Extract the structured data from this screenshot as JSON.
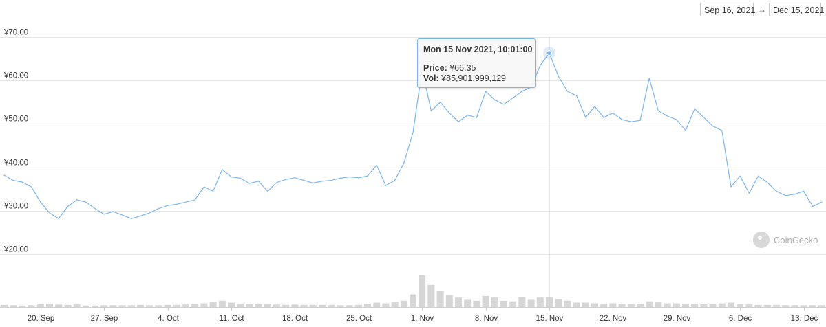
{
  "range": {
    "from": "Sep 16, 2021",
    "arrow": "→",
    "to": "Dec 15, 2021"
  },
  "tooltip": {
    "header": "Mon 15 Nov 2021, 10:01:00",
    "price_label": "Price:",
    "price_value": "¥66.35",
    "vol_label": "Vol:",
    "vol_value": "¥85,901,999,129"
  },
  "watermark": {
    "text": "CoinGecko",
    "icon": "coingecko-gecko-logo"
  },
  "colors": {
    "line": "#7cb5ec",
    "volume": "#c8c8c8",
    "grid": "#e6e6e6",
    "crosshair": "#cccccc",
    "tooltip_border": "#7cb5ec"
  },
  "chart_data": {
    "type": "line",
    "title": "",
    "xlabel": "",
    "ylabel": "",
    "x_range": [
      "2021-09-16",
      "2021-12-15"
    ],
    "ylim": [
      20,
      70
    ],
    "y_ticks": [
      20,
      30,
      40,
      50,
      60,
      70
    ],
    "y_tick_labels": [
      "¥20.00",
      "¥30.00",
      "¥40.00",
      "¥50.00",
      "¥60.00",
      "¥70.00"
    ],
    "x_ticks": [
      {
        "date": "2021-09-20",
        "label": "20. Sep"
      },
      {
        "date": "2021-09-27",
        "label": "27. Sep"
      },
      {
        "date": "2021-10-04",
        "label": "4. Oct"
      },
      {
        "date": "2021-10-11",
        "label": "11. Oct"
      },
      {
        "date": "2021-10-18",
        "label": "18. Oct"
      },
      {
        "date": "2021-10-25",
        "label": "25. Oct"
      },
      {
        "date": "2021-11-01",
        "label": "1. Nov"
      },
      {
        "date": "2021-11-08",
        "label": "8. Nov"
      },
      {
        "date": "2021-11-15",
        "label": "15. Nov"
      },
      {
        "date": "2021-11-22",
        "label": "22. Nov"
      },
      {
        "date": "2021-11-29",
        "label": "29. Nov"
      },
      {
        "date": "2021-12-06",
        "label": "6. Dec"
      },
      {
        "date": "2021-12-13",
        "label": "13. Dec"
      }
    ],
    "grid": true,
    "legend": "none",
    "highlight": {
      "date": "2021-11-15",
      "value": 66.35
    },
    "series": [
      {
        "values": [
          [
            "2021-09-16",
            38.2
          ],
          [
            "2021-09-17",
            37.0
          ],
          [
            "2021-09-18",
            36.6
          ],
          [
            "2021-09-19",
            35.5
          ],
          [
            "2021-09-20",
            32.0
          ],
          [
            "2021-09-21",
            29.5
          ],
          [
            "2021-09-22",
            28.2
          ],
          [
            "2021-09-23",
            31.0
          ],
          [
            "2021-09-24",
            32.5
          ],
          [
            "2021-09-25",
            32.0
          ],
          [
            "2021-09-26",
            30.5
          ],
          [
            "2021-09-27",
            29.2
          ],
          [
            "2021-09-28",
            29.8
          ],
          [
            "2021-09-29",
            29.0
          ],
          [
            "2021-09-30",
            28.2
          ],
          [
            "2021-10-01",
            28.8
          ],
          [
            "2021-10-02",
            29.5
          ],
          [
            "2021-10-03",
            30.5
          ],
          [
            "2021-10-04",
            31.2
          ],
          [
            "2021-10-05",
            31.5
          ],
          [
            "2021-10-06",
            32.0
          ],
          [
            "2021-10-07",
            32.5
          ],
          [
            "2021-10-08",
            35.5
          ],
          [
            "2021-10-09",
            34.5
          ],
          [
            "2021-10-10",
            39.5
          ],
          [
            "2021-10-11",
            37.8
          ],
          [
            "2021-10-12",
            37.5
          ],
          [
            "2021-10-13",
            36.3
          ],
          [
            "2021-10-14",
            36.8
          ],
          [
            "2021-10-15",
            34.5
          ],
          [
            "2021-10-16",
            36.5
          ],
          [
            "2021-10-17",
            37.2
          ],
          [
            "2021-10-18",
            37.6
          ],
          [
            "2021-10-19",
            37.0
          ],
          [
            "2021-10-20",
            36.4
          ],
          [
            "2021-10-21",
            36.8
          ],
          [
            "2021-10-22",
            37.0
          ],
          [
            "2021-10-23",
            37.5
          ],
          [
            "2021-10-24",
            37.8
          ],
          [
            "2021-10-25",
            37.6
          ],
          [
            "2021-10-26",
            38.0
          ],
          [
            "2021-10-27",
            40.5
          ],
          [
            "2021-10-28",
            35.8
          ],
          [
            "2021-10-29",
            37.0
          ],
          [
            "2021-10-30",
            41.0
          ],
          [
            "2021-10-31",
            48.0
          ],
          [
            "2021-11-01",
            62.5
          ],
          [
            "2021-11-02",
            53.0
          ],
          [
            "2021-11-03",
            55.0
          ],
          [
            "2021-11-04",
            52.5
          ],
          [
            "2021-11-05",
            50.5
          ],
          [
            "2021-11-06",
            52.0
          ],
          [
            "2021-11-07",
            51.5
          ],
          [
            "2021-11-08",
            57.5
          ],
          [
            "2021-11-09",
            55.5
          ],
          [
            "2021-11-10",
            54.5
          ],
          [
            "2021-11-11",
            56.0
          ],
          [
            "2021-11-12",
            57.5
          ],
          [
            "2021-11-13",
            58.5
          ],
          [
            "2021-11-14",
            63.5
          ],
          [
            "2021-11-15",
            66.35
          ],
          [
            "2021-11-16",
            61.0
          ],
          [
            "2021-11-17",
            57.5
          ],
          [
            "2021-11-18",
            56.5
          ],
          [
            "2021-11-19",
            51.5
          ],
          [
            "2021-11-20",
            54.0
          ],
          [
            "2021-11-21",
            51.5
          ],
          [
            "2021-11-22",
            52.5
          ],
          [
            "2021-11-23",
            51.0
          ],
          [
            "2021-11-24",
            50.5
          ],
          [
            "2021-11-25",
            50.8
          ],
          [
            "2021-11-26",
            60.5
          ],
          [
            "2021-11-27",
            53.0
          ],
          [
            "2021-11-28",
            51.8
          ],
          [
            "2021-11-29",
            51.0
          ],
          [
            "2021-11-30",
            48.5
          ],
          [
            "2021-12-01",
            53.5
          ],
          [
            "2021-12-02",
            51.5
          ],
          [
            "2021-12-03",
            49.5
          ],
          [
            "2021-12-04",
            48.5
          ],
          [
            "2021-12-05",
            35.5
          ],
          [
            "2021-12-06",
            38.0
          ],
          [
            "2021-12-07",
            34.0
          ],
          [
            "2021-12-08",
            38.0
          ],
          [
            "2021-12-09",
            36.5
          ],
          [
            "2021-12-10",
            34.5
          ],
          [
            "2021-12-11",
            33.5
          ],
          [
            "2021-12-12",
            33.8
          ],
          [
            "2021-12-13",
            34.5
          ],
          [
            "2021-12-14",
            31.0
          ],
          [
            "2021-12-15",
            32.0
          ]
        ]
      }
    ],
    "volume": [
      [
        "2021-09-16",
        0.07
      ],
      [
        "2021-09-17",
        0.06
      ],
      [
        "2021-09-18",
        0.05
      ],
      [
        "2021-09-19",
        0.06
      ],
      [
        "2021-09-20",
        0.09
      ],
      [
        "2021-09-21",
        0.1
      ],
      [
        "2021-09-22",
        0.08
      ],
      [
        "2021-09-23",
        0.07
      ],
      [
        "2021-09-24",
        0.08
      ],
      [
        "2021-09-25",
        0.05
      ],
      [
        "2021-09-26",
        0.05
      ],
      [
        "2021-09-27",
        0.06
      ],
      [
        "2021-09-28",
        0.06
      ],
      [
        "2021-09-29",
        0.06
      ],
      [
        "2021-09-30",
        0.06
      ],
      [
        "2021-10-01",
        0.07
      ],
      [
        "2021-10-02",
        0.06
      ],
      [
        "2021-10-03",
        0.06
      ],
      [
        "2021-10-04",
        0.07
      ],
      [
        "2021-10-05",
        0.07
      ],
      [
        "2021-10-06",
        0.08
      ],
      [
        "2021-10-07",
        0.09
      ],
      [
        "2021-10-08",
        0.12
      ],
      [
        "2021-10-09",
        0.15
      ],
      [
        "2021-10-10",
        0.2
      ],
      [
        "2021-10-11",
        0.14
      ],
      [
        "2021-10-12",
        0.11
      ],
      [
        "2021-10-13",
        0.1
      ],
      [
        "2021-10-14",
        0.09
      ],
      [
        "2021-10-15",
        0.11
      ],
      [
        "2021-10-16",
        0.08
      ],
      [
        "2021-10-17",
        0.07
      ],
      [
        "2021-10-18",
        0.08
      ],
      [
        "2021-10-19",
        0.07
      ],
      [
        "2021-10-20",
        0.07
      ],
      [
        "2021-10-21",
        0.07
      ],
      [
        "2021-10-22",
        0.07
      ],
      [
        "2021-10-23",
        0.06
      ],
      [
        "2021-10-24",
        0.06
      ],
      [
        "2021-10-25",
        0.07
      ],
      [
        "2021-10-26",
        0.1
      ],
      [
        "2021-10-27",
        0.14
      ],
      [
        "2021-10-28",
        0.12
      ],
      [
        "2021-10-29",
        0.15
      ],
      [
        "2021-10-30",
        0.2
      ],
      [
        "2021-10-31",
        0.4
      ],
      [
        "2021-11-01",
        1.0
      ],
      [
        "2021-11-02",
        0.7
      ],
      [
        "2021-11-03",
        0.5
      ],
      [
        "2021-11-04",
        0.38
      ],
      [
        "2021-11-05",
        0.3
      ],
      [
        "2021-11-06",
        0.25
      ],
      [
        "2021-11-07",
        0.2
      ],
      [
        "2021-11-08",
        0.35
      ],
      [
        "2021-11-09",
        0.3
      ],
      [
        "2021-11-10",
        0.2
      ],
      [
        "2021-11-11",
        0.18
      ],
      [
        "2021-11-12",
        0.32
      ],
      [
        "2021-11-13",
        0.25
      ],
      [
        "2021-11-14",
        0.3
      ],
      [
        "2021-11-15",
        0.32
      ],
      [
        "2021-11-16",
        0.26
      ],
      [
        "2021-11-17",
        0.2
      ],
      [
        "2021-11-18",
        0.14
      ],
      [
        "2021-11-19",
        0.14
      ],
      [
        "2021-11-20",
        0.12
      ],
      [
        "2021-11-21",
        0.11
      ],
      [
        "2021-11-22",
        0.12
      ],
      [
        "2021-11-23",
        0.1
      ],
      [
        "2021-11-24",
        0.1
      ],
      [
        "2021-11-25",
        0.1
      ],
      [
        "2021-11-26",
        0.18
      ],
      [
        "2021-11-27",
        0.15
      ],
      [
        "2021-11-28",
        0.12
      ],
      [
        "2021-11-29",
        0.12
      ],
      [
        "2021-11-30",
        0.11
      ],
      [
        "2021-12-01",
        0.1
      ],
      [
        "2021-12-02",
        0.09
      ],
      [
        "2021-12-03",
        0.09
      ],
      [
        "2021-12-04",
        0.12
      ],
      [
        "2021-12-05",
        0.14
      ],
      [
        "2021-12-06",
        0.1
      ],
      [
        "2021-12-07",
        0.08
      ],
      [
        "2021-12-08",
        0.07
      ],
      [
        "2021-12-09",
        0.07
      ],
      [
        "2021-12-10",
        0.07
      ],
      [
        "2021-12-11",
        0.06
      ],
      [
        "2021-12-12",
        0.06
      ],
      [
        "2021-12-13",
        0.06
      ],
      [
        "2021-12-14",
        0.06
      ],
      [
        "2021-12-15",
        0.06
      ]
    ]
  }
}
